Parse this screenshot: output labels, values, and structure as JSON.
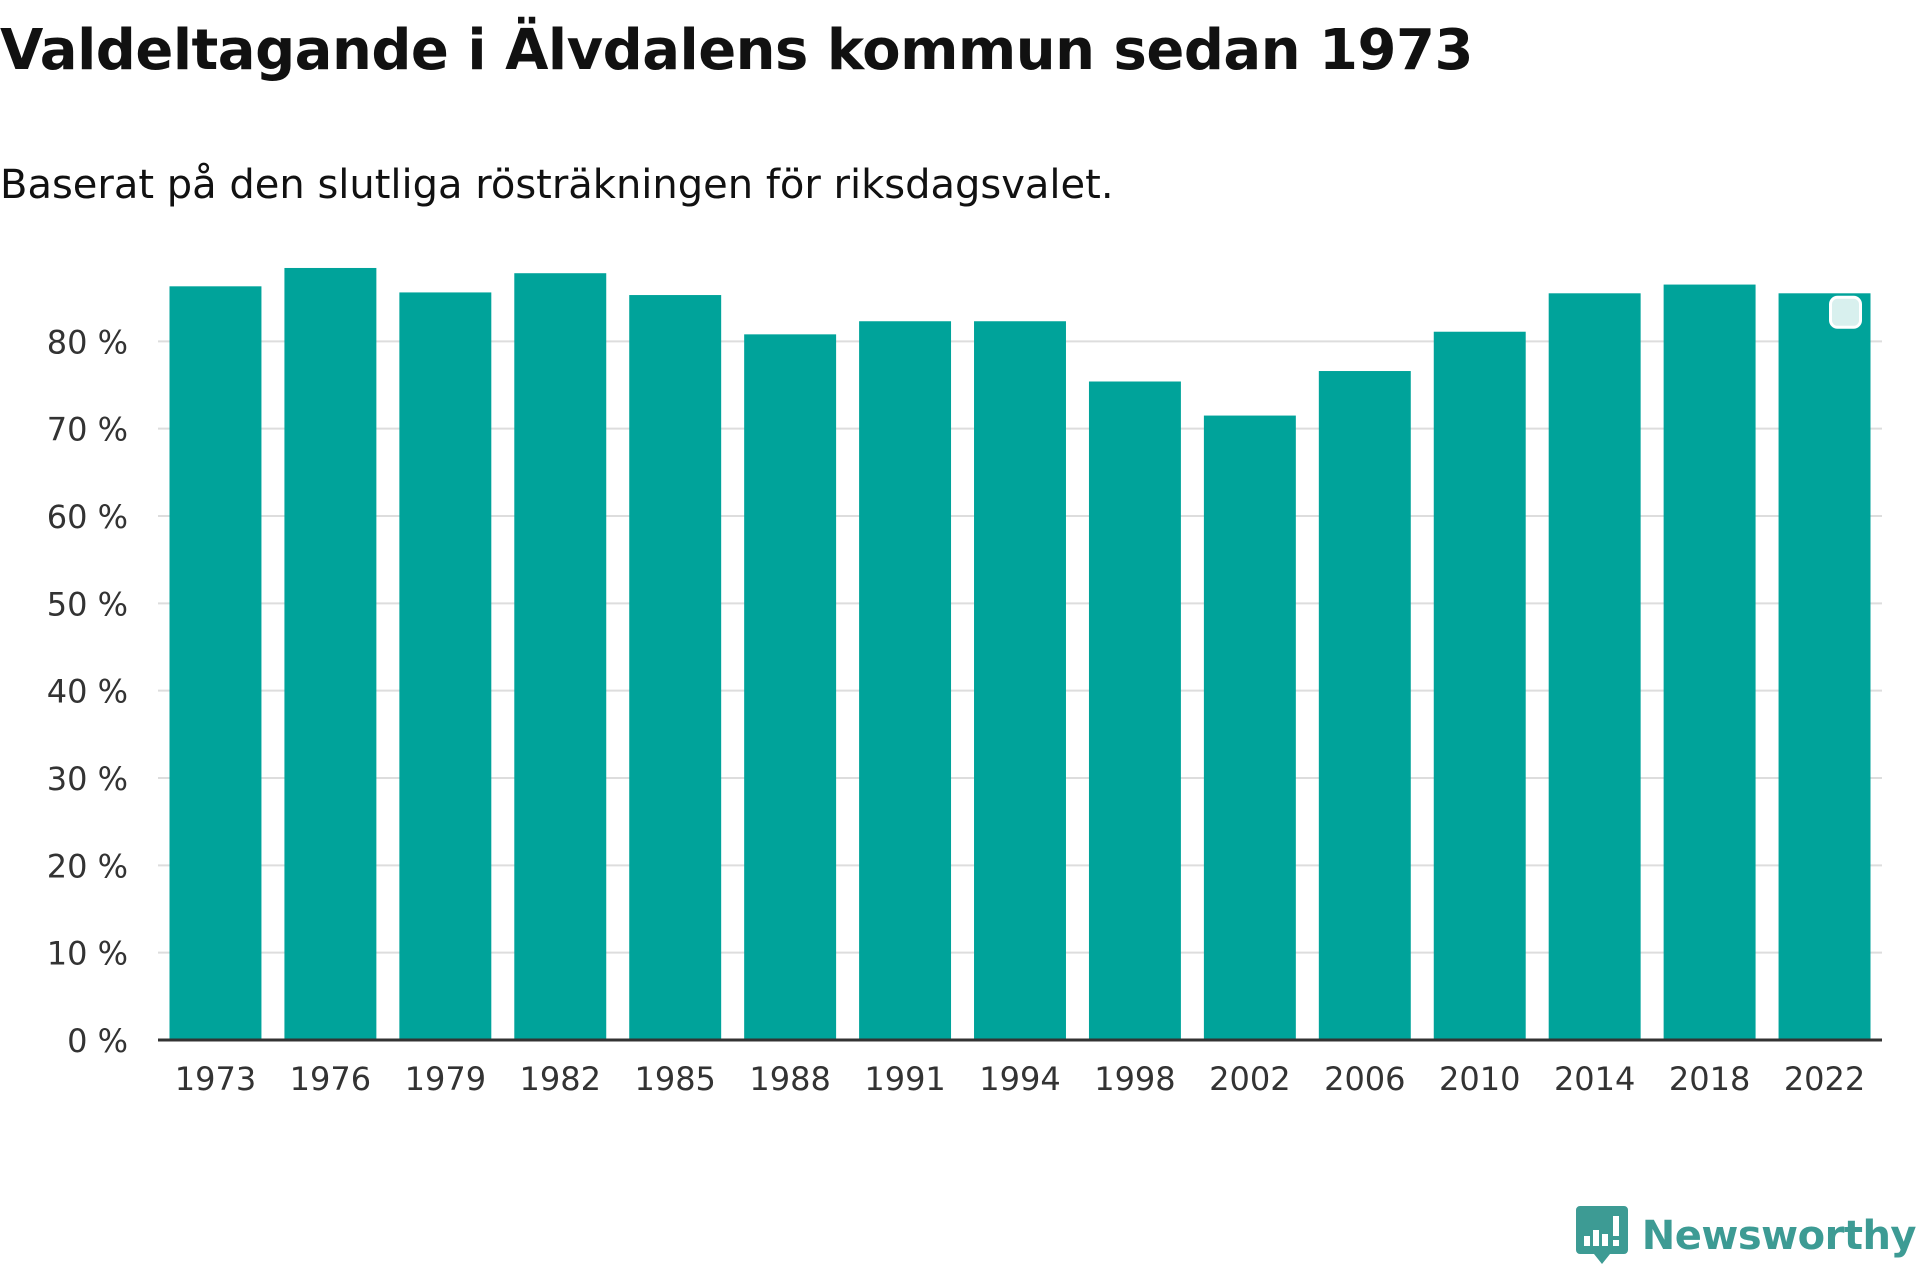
{
  "chart_data": {
    "type": "bar",
    "title": "Valdeltagande i Älvdalens kommun sedan 1973",
    "subtitle": "Baserat på den slutliga rösträkningen för riksdagsvalet.",
    "xlabel": "",
    "ylabel": "",
    "categories": [
      "1973",
      "1976",
      "1979",
      "1982",
      "1985",
      "1988",
      "1991",
      "1994",
      "1998",
      "2002",
      "2006",
      "2010",
      "2014",
      "2018",
      "2022"
    ],
    "values": [
      86.3,
      88.4,
      85.6,
      87.8,
      85.3,
      80.8,
      82.3,
      82.3,
      75.4,
      71.5,
      76.6,
      81.1,
      85.5,
      86.5,
      85.5
    ],
    "ylim": [
      0,
      90
    ],
    "yticks": [
      0,
      10,
      20,
      30,
      40,
      50,
      60,
      70,
      80
    ],
    "ytick_labels": [
      "0 %",
      "10 %",
      "20 %",
      "30 %",
      "40 %",
      "50 %",
      "60 %",
      "70 %",
      "80 %"
    ],
    "grid": true,
    "bar_color": "#00a39a",
    "grid_color": "#dddddd",
    "axis_color": "#333333"
  },
  "brand": {
    "name": "Newsworthy",
    "icon": "newsworthy-logo-icon",
    "color": "#3d9b94"
  }
}
